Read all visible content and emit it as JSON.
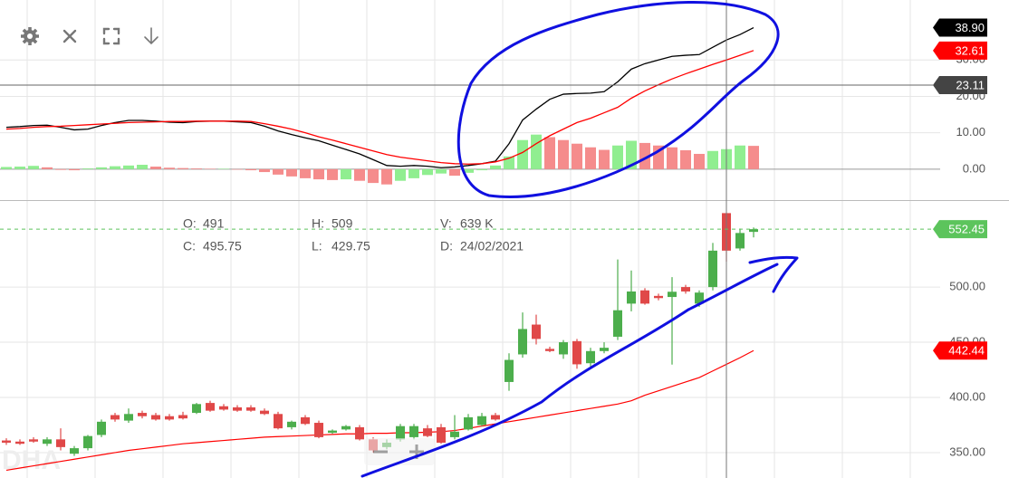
{
  "chart_data": [
    {
      "type": "macd",
      "ylim": [
        -8.5,
        46.5
      ],
      "yticks": [
        {
          "value": 0,
          "label": "0.00"
        },
        {
          "value": 10,
          "label": "10.00"
        },
        {
          "value": 20,
          "label": "20.00"
        },
        {
          "value": 30,
          "label": "30.00"
        }
      ],
      "grid": true,
      "crosshair": {
        "value": 23.11,
        "index": 53
      },
      "series": [
        {
          "type": "line",
          "color": "#000000",
          "last_label": "38.90",
          "values": [
            11.5,
            11.7,
            12.0,
            12.1,
            11.5,
            10.8,
            11.0,
            12.0,
            12.8,
            13.4,
            13.4,
            13.2,
            12.9,
            12.8,
            13.1,
            13.2,
            13.2,
            13.0,
            12.8,
            11.8,
            10.5,
            9.5,
            8.6,
            7.8,
            6.6,
            5.4,
            4.2,
            2.6,
            1.0,
            0.8,
            1.0,
            0.8,
            0.4,
            0.6,
            1.0,
            1.5,
            2.2,
            7.0,
            13.5,
            16.5,
            19.2,
            20.6,
            20.8,
            20.9,
            21.3,
            24.0,
            27.5,
            29.0,
            30.0,
            31.0,
            31.3,
            31.5,
            33.5,
            35.5,
            37.0,
            38.9
          ]
        },
        {
          "type": "line",
          "color": "#ff0000",
          "values": [
            11.0,
            11.2,
            11.5,
            11.7,
            11.8,
            12.0,
            12.2,
            12.4,
            12.6,
            12.8,
            12.9,
            13.0,
            13.1,
            13.1,
            13.2,
            13.2,
            13.2,
            13.2,
            13.1,
            12.5,
            11.8,
            11.0,
            10.0,
            8.9,
            8.0,
            7.0,
            6.0,
            5.0,
            4.0,
            3.3,
            2.8,
            2.3,
            1.8,
            1.5,
            1.4,
            1.5,
            2.0,
            3.0,
            4.6,
            7.0,
            9.2,
            11.0,
            12.8,
            14.0,
            15.5,
            17.0,
            19.5,
            21.5,
            23.2,
            24.8,
            26.2,
            27.5,
            28.8,
            30.0,
            31.3,
            32.61
          ]
        },
        {
          "type": "bar",
          "up_color": "#90ee90",
          "down_color": "#f58c8c",
          "values": [
            0.6,
            0.7,
            0.9,
            0.5,
            -0.2,
            -0.3,
            0.2,
            0.5,
            0.8,
            1.0,
            1.2,
            0.7,
            0.4,
            0.3,
            0.2,
            0.1,
            0.1,
            0.0,
            -0.3,
            -0.8,
            -1.5,
            -2.0,
            -2.5,
            -2.8,
            -3.0,
            -2.8,
            -3.2,
            -3.8,
            -4.2,
            -3.2,
            -2.5,
            -1.6,
            -1.2,
            -1.8,
            -1.0,
            -0.3,
            1.0,
            3.5,
            8.0,
            9.5,
            8.8,
            8.0,
            7.0,
            6.0,
            5.3,
            6.5,
            7.8,
            7.2,
            6.5,
            6.0,
            5.2,
            4.2,
            5.0,
            5.5,
            6.5,
            6.4
          ]
        }
      ]
    },
    {
      "type": "candlestick",
      "ylim": [
        327,
        578
      ],
      "yticks": [
        {
          "value": 350,
          "label": "350.00"
        },
        {
          "value": 400,
          "label": "400.00"
        },
        {
          "value": 450,
          "label": "450.00"
        },
        {
          "value": 500,
          "label": "500.00"
        }
      ],
      "grid": true,
      "up_color": "#4cae4c",
      "down_color": "#e04848",
      "last_color": "#5cc45c",
      "open": [
        361,
        360,
        362,
        358,
        362,
        349,
        354,
        366,
        384,
        379,
        386,
        384,
        383,
        384,
        386,
        395,
        392,
        391,
        391,
        388,
        385,
        373,
        382,
        377,
        368,
        371,
        373,
        362,
        355,
        362,
        364,
        372,
        373,
        364,
        371,
        375,
        384,
        414,
        439,
        466,
        444,
        439,
        451,
        431,
        442,
        455,
        485,
        497,
        492,
        491,
        500,
        485,
        500,
        567,
        535,
        550
      ],
      "high": [
        363,
        362,
        364,
        364,
        372,
        356,
        366,
        380,
        386,
        390,
        388,
        386,
        385,
        387,
        395,
        397,
        394,
        393,
        393,
        390,
        387,
        379,
        384,
        379,
        371,
        375,
        375,
        364,
        362,
        376,
        376,
        375,
        376,
        384,
        385,
        386,
        386,
        440,
        477,
        475,
        446,
        452,
        453,
        445,
        450,
        525,
        515,
        499,
        494,
        509,
        502,
        497,
        540,
        567,
        553,
        554
      ],
      "low": [
        357,
        357,
        359,
        356,
        352,
        347,
        352,
        364,
        378,
        377,
        381,
        379,
        379,
        380,
        385,
        387,
        388,
        387,
        387,
        384,
        371,
        371,
        375,
        363,
        367,
        370,
        361,
        350,
        353,
        360,
        362,
        364,
        358,
        362,
        370,
        374,
        379,
        406,
        436,
        448,
        441,
        435,
        426,
        428,
        440,
        452,
        478,
        484,
        488,
        429.75,
        494,
        482,
        497,
        523,
        533,
        545
      ],
      "close": [
        359,
        358,
        360,
        362,
        355,
        354,
        365,
        378,
        380,
        385,
        383,
        380,
        380,
        381,
        394,
        388,
        389,
        388,
        388,
        385,
        372,
        378,
        376,
        364,
        370,
        374,
        362,
        352,
        359,
        374,
        374,
        365,
        359,
        369,
        382,
        383,
        380,
        434,
        462,
        453,
        442,
        450,
        430,
        442,
        445,
        479,
        496,
        485,
        490,
        495.75,
        496,
        495,
        533,
        533,
        549,
        552.45
      ],
      "series": [
        {
          "type": "line",
          "color": "#ff0000",
          "values": [
            334,
            336,
            338,
            340,
            342,
            344,
            346,
            348,
            350,
            352,
            353.5,
            355,
            356.5,
            358,
            359,
            360,
            361,
            362,
            363,
            364,
            364.5,
            365,
            365.5,
            366,
            366.5,
            367,
            367,
            367.5,
            367.5,
            368,
            368,
            368.5,
            369,
            370,
            372,
            374,
            376,
            378,
            380,
            382,
            384,
            386,
            388,
            390,
            392,
            394,
            397,
            402,
            406,
            410,
            414,
            418,
            424,
            430,
            436,
            442.44
          ]
        }
      ],
      "info": [
        {
          "label": "O:",
          "value": 491
        },
        {
          "label": "H:",
          "value": 509
        },
        {
          "label": "V:",
          "value": {
            "value": 639000,
            "label": "639 K"
          }
        },
        {
          "label": "C:",
          "value": 495.75
        },
        {
          "label": "L:",
          "value": 429.75
        },
        {
          "label": "D:",
          "value": "24/02/2021"
        }
      ],
      "watermark": "DHA"
    }
  ]
}
